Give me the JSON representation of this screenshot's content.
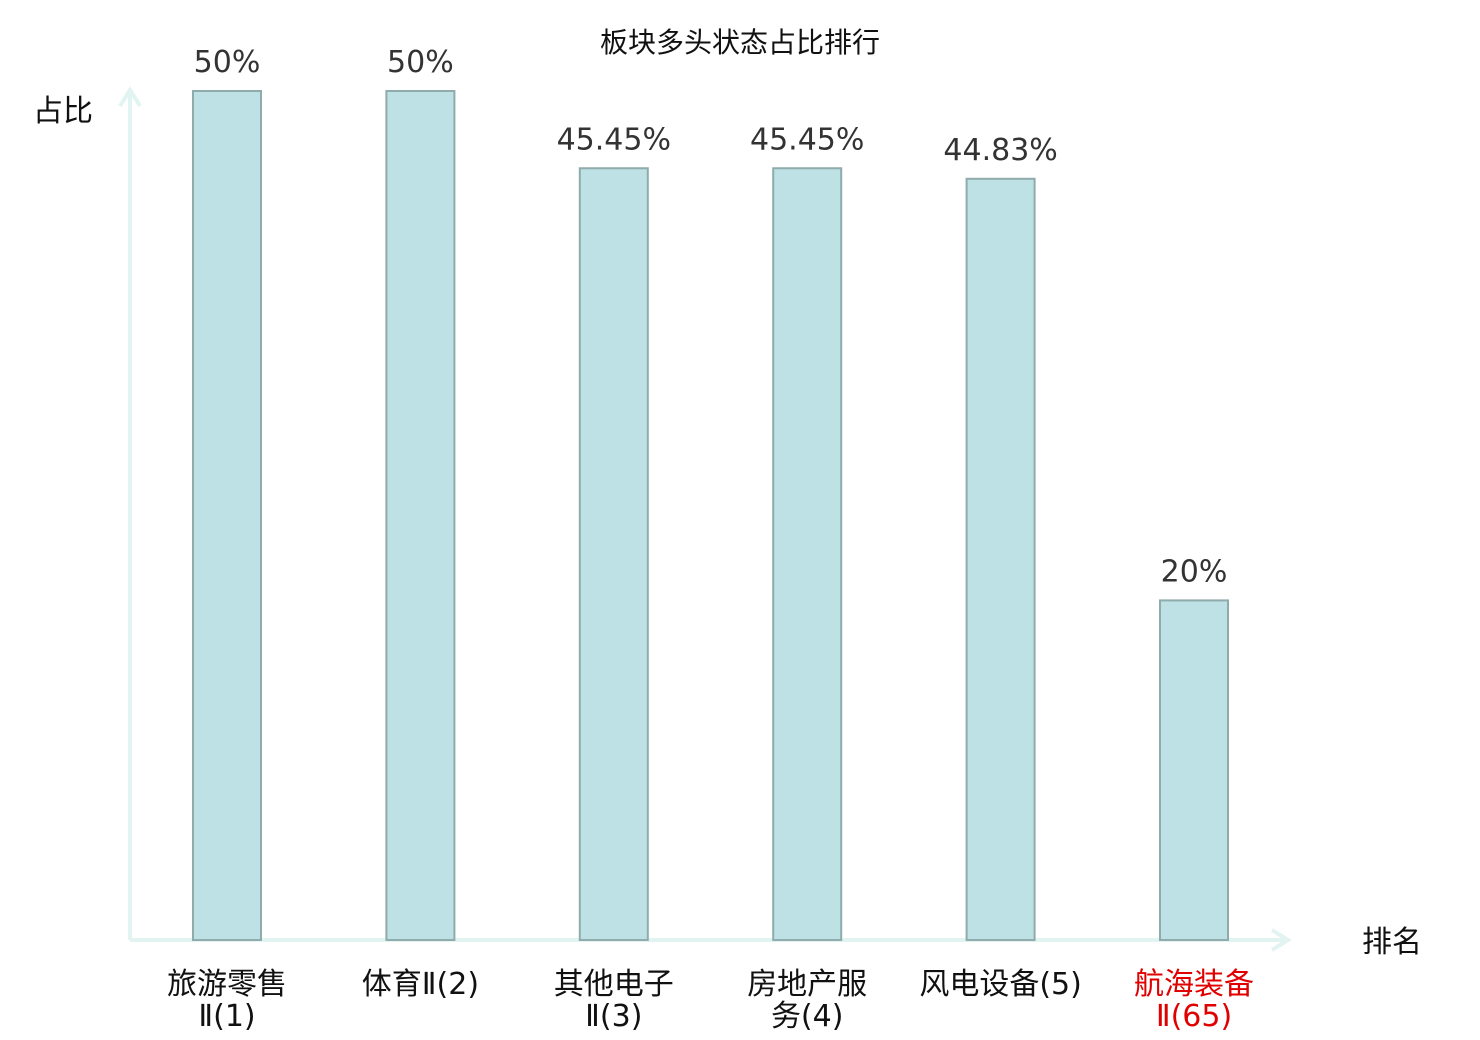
{
  "chart_data": {
    "type": "bar",
    "title": "板块多头状态占比排行",
    "ylabel": "占比",
    "xlabel": "排名",
    "ylim": [
      0,
      50
    ],
    "grid": false,
    "categories": [
      [
        "旅游零售",
        "Ⅱ(1)"
      ],
      [
        "体育Ⅱ(2)"
      ],
      [
        "其他电子",
        "Ⅱ(3)"
      ],
      [
        "房地产服",
        "务(4)"
      ],
      [
        "风电设备(5)"
      ],
      [
        "航海装备",
        "Ⅱ(65)"
      ]
    ],
    "values": [
      50,
      50,
      45.45,
      45.45,
      44.83,
      20
    ],
    "value_labels": [
      "50%",
      "50%",
      "45.45%",
      "45.45%",
      "44.83%",
      "20%"
    ],
    "highlight_index": 5,
    "colors": {
      "bar_fill": "#bde1e4",
      "bar_stroke": "#8fabab",
      "axis": "#e1f4f1",
      "highlight_text": "#e00000"
    }
  }
}
